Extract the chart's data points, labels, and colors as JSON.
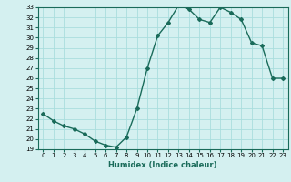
{
  "x": [
    0,
    1,
    2,
    3,
    4,
    5,
    6,
    7,
    8,
    9,
    10,
    11,
    12,
    13,
    14,
    15,
    16,
    17,
    18,
    19,
    20,
    21,
    22,
    23
  ],
  "y": [
    22.5,
    21.8,
    21.3,
    21.0,
    20.5,
    19.8,
    19.4,
    19.2,
    20.2,
    23.0,
    27.0,
    30.2,
    31.5,
    33.2,
    32.8,
    31.8,
    31.5,
    33.0,
    32.5,
    31.8,
    29.5,
    29.2,
    26.0,
    26.0
  ],
  "xlabel": "Humidex (Indice chaleur)",
  "ylim": [
    19,
    33
  ],
  "xlim": [
    -0.5,
    23.5
  ],
  "yticks": [
    19,
    20,
    21,
    22,
    23,
    24,
    25,
    26,
    27,
    28,
    29,
    30,
    31,
    32,
    33
  ],
  "xticks": [
    0,
    1,
    2,
    3,
    4,
    5,
    6,
    7,
    8,
    9,
    10,
    11,
    12,
    13,
    14,
    15,
    16,
    17,
    18,
    19,
    20,
    21,
    22,
    23
  ],
  "line_color": "#1a6b5a",
  "marker_color": "#1a6b5a",
  "bg_color": "#d4f0f0",
  "grid_color": "#aadddd"
}
